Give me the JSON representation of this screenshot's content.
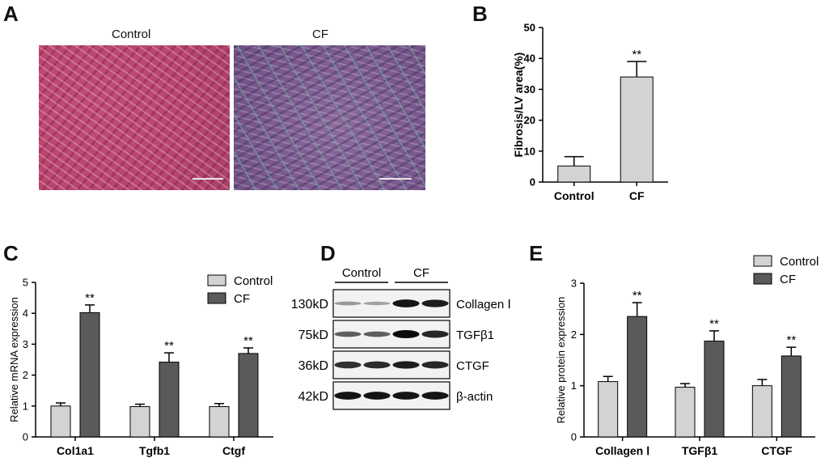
{
  "panel_letters": {
    "a": "A",
    "b": "B",
    "c": "C",
    "d": "D",
    "e": "E"
  },
  "panel_a": {
    "control_label": "Control",
    "cf_label": "CF"
  },
  "chart_data": [
    {
      "id": "B",
      "type": "bar",
      "categories": [
        "Control",
        "CF"
      ],
      "series": [
        {
          "values": [
            5.2,
            34.0
          ],
          "errors": [
            3.0,
            5.0
          ],
          "annotations": [
            "",
            "**"
          ]
        }
      ],
      "ylabel": "Fibrosis/LV area(%)",
      "ylim": [
        0,
        50
      ],
      "yticks": [
        0,
        10,
        20,
        30,
        40,
        50
      ],
      "colors": [
        "#d3d3d3",
        "#d3d3d3"
      ]
    },
    {
      "id": "C",
      "type": "bar",
      "categories": [
        "Col1a1",
        "Tgfb1",
        "Ctgf"
      ],
      "series": [
        {
          "name": "Control",
          "values": [
            1.0,
            0.98,
            0.98
          ],
          "errors": [
            0.1,
            0.08,
            0.1
          ],
          "color": "#d3d3d3"
        },
        {
          "name": "CF",
          "values": [
            4.02,
            2.42,
            2.7
          ],
          "errors": [
            0.25,
            0.3,
            0.18
          ],
          "color": "#5a5a5a",
          "annotations": [
            "**",
            "**",
            "**"
          ]
        }
      ],
      "ylabel": "Relative mRNA expression",
      "ylim": [
        0,
        5
      ],
      "yticks": [
        0,
        1,
        2,
        3,
        4,
        5
      ],
      "legend": "top-right"
    },
    {
      "id": "E",
      "type": "bar",
      "categories": [
        "Collagen Ⅰ",
        "TGFβ1",
        "CTGF"
      ],
      "series": [
        {
          "name": "Control",
          "values": [
            1.08,
            0.97,
            1.0
          ],
          "errors": [
            0.1,
            0.07,
            0.12
          ],
          "color": "#d3d3d3"
        },
        {
          "name": "CF",
          "values": [
            2.35,
            1.87,
            1.58
          ],
          "errors": [
            0.27,
            0.2,
            0.17
          ],
          "color": "#5a5a5a",
          "annotations": [
            "**",
            "**",
            "**"
          ]
        }
      ],
      "ylabel": "Relative protein expression",
      "ylim": [
        0,
        3
      ],
      "yticks": [
        0,
        1,
        2,
        3
      ],
      "legend": "top-right"
    }
  ],
  "western_blot": {
    "group_labels": [
      "Control",
      "CF"
    ],
    "rows": [
      {
        "mw": "130kD",
        "protein": "Collagen Ⅰ",
        "intensities": [
          0.25,
          0.2,
          0.95,
          0.9
        ]
      },
      {
        "mw": "75kD",
        "protein": "TGFβ1",
        "intensities": [
          0.55,
          0.55,
          1.0,
          0.85
        ]
      },
      {
        "mw": "36kD",
        "protein": "CTGF",
        "intensities": [
          0.8,
          0.82,
          0.9,
          0.85
        ]
      },
      {
        "mw": "42kD",
        "protein": "β-actin",
        "intensities": [
          0.95,
          0.95,
          0.95,
          0.95
        ]
      }
    ]
  }
}
